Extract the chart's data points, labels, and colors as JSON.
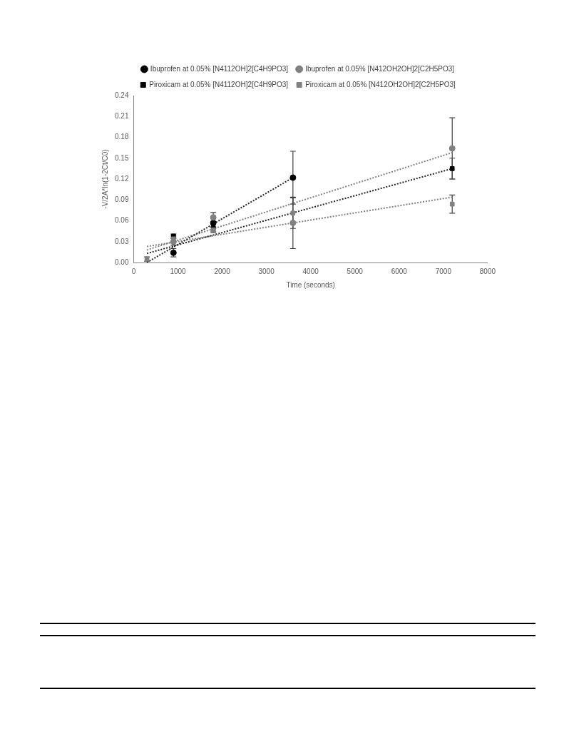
{
  "chart_data": {
    "type": "scatter",
    "xlabel": "Time (seconds)",
    "ylabel": "-V/2A*ln(1-2Ct/C0)",
    "xlim": [
      0,
      8000
    ],
    "xticks": [
      0,
      1000,
      2000,
      3000,
      4000,
      5000,
      6000,
      7000,
      8000
    ],
    "ylim": [
      0,
      0.24
    ],
    "yticks": [
      {
        "value": 0,
        "label": "0.00"
      },
      {
        "value": 0.03,
        "label": "0.03"
      },
      {
        "value": 0.06,
        "label": "0.06"
      },
      {
        "value": 0.09,
        "label": "0.09"
      },
      {
        "value": 0.12,
        "label": "0.12"
      },
      {
        "value": 0.15,
        "label": "0.15"
      },
      {
        "value": 0.18,
        "label": "0.18"
      },
      {
        "value": 0.21,
        "label": "0.21"
      },
      {
        "value": 0.24,
        "label": "0.24"
      }
    ],
    "legend": "top",
    "grid": false,
    "series": [
      {
        "name": "Ibuprofen at 0.05% [N4112OH]2[C4H9PO3]",
        "color": "#000000",
        "marker": "circle",
        "x": [
          900,
          1800,
          3600
        ],
        "values": [
          0.014,
          0.057,
          0.122
        ],
        "errors": [
          0.006,
          0.006,
          0.038
        ]
      },
      {
        "name": "Ibuprofen at 0.05% [N412OH2OH]2[C2H5PO3]",
        "color": "#808080",
        "marker": "circle",
        "x": [
          900,
          1800,
          3600,
          7200
        ],
        "values": [
          0.03,
          0.065,
          0.057,
          0.164
        ],
        "errors": [
          0.005,
          0.007,
          0.037,
          0.044
        ]
      },
      {
        "name": "Piroxicam at 0.05% [N4112OH]2[C4H9PO3]",
        "color": "#000000",
        "marker": "square",
        "x": [
          900,
          1800,
          7200
        ],
        "values": [
          0.038,
          0.05,
          0.135
        ],
        "errors": [
          0.003,
          0.005,
          0.015
        ]
      },
      {
        "name": "Piroxicam at 0.05% [N412OH2OH]2[C2H5PO3]",
        "color": "#808080",
        "marker": "square",
        "x": [
          300,
          900,
          1800,
          3600,
          7200
        ],
        "values": [
          0.005,
          0.034,
          0.047,
          0.071,
          0.084
        ],
        "errors": [
          0.003,
          0.004,
          0.004,
          0.022,
          0.013
        ]
      },
      {
        "type": "line",
        "color": "#262626",
        "marker": "none",
        "line_style": "dotted",
        "x": [
          300,
          3600
        ],
        "values": [
          0.0,
          0.122
        ]
      },
      {
        "type": "line",
        "color": "#808080",
        "marker": "none",
        "line_style": "dotted",
        "x": [
          300,
          7200
        ],
        "values": [
          0.018,
          0.158
        ]
      },
      {
        "type": "line",
        "color": "#262626",
        "marker": "none",
        "line_style": "dotted",
        "x": [
          300,
          7200
        ],
        "values": [
          0.013,
          0.135
        ]
      },
      {
        "type": "line",
        "color": "#808080",
        "marker": "none",
        "line_style": "dotted",
        "x": [
          300,
          7200
        ],
        "values": [
          0.023,
          0.094
        ]
      }
    ]
  }
}
